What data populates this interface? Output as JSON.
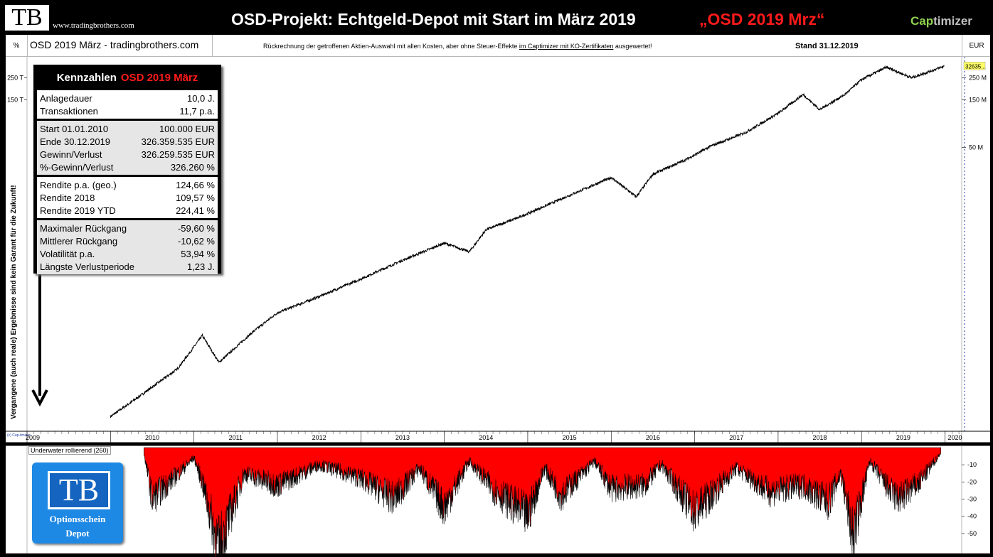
{
  "header": {
    "logo_text": "TB",
    "site": "www.tradingbrothers.com",
    "title": "OSD-Projekt:  Echtgeld-Depot mit Start im März 2019",
    "red_title": "„OSD 2019 Mrz“",
    "brand_cap": "Cap",
    "brand_rest": "timizer"
  },
  "info_row": {
    "pct_label": "%",
    "chart_name": "OSD 2019 März - tradingbrothers.com",
    "note_1": "Rückrechnung der getroffenen Aktien-Auswahl mit allen Kosten, aber ohne Steuer-Effekte ",
    "note_link": "im Captimizer mit KO-Zertifikaten",
    "note_2": " ausgewertet!",
    "stand": "Stand  31.12.2019",
    "eur_label": "EUR"
  },
  "kennzahlen": {
    "title": "Kennzahlen",
    "title_red": "OSD 2019 März",
    "groups": [
      {
        "shade": false,
        "rows": [
          {
            "label": "Anlagedauer",
            "value": "10,0 J."
          },
          {
            "label": "Transaktionen",
            "value": "11,7 p.a."
          }
        ]
      },
      {
        "shade": true,
        "rows": [
          {
            "label": "Start  01.01.2010",
            "value": "100.000 EUR"
          },
          {
            "label": "Ende 30.12.2019",
            "value": "326.359.535 EUR"
          },
          {
            "label": "Gewinn/Verlust",
            "value": "326.259.535 EUR"
          },
          {
            "label": "%-Gewinn/Verlust",
            "value": "326.260 %"
          }
        ]
      },
      {
        "shade": false,
        "rows": [
          {
            "label": "Rendite p.a. (geo.)",
            "value": "124,66 %"
          },
          {
            "label": "Rendite 2018",
            "value": "109,57 %"
          },
          {
            "label": "Rendite 2019 YTD",
            "value": "224,41 %"
          }
        ]
      },
      {
        "shade": true,
        "rows": [
          {
            "label": "Maximaler Rückgang",
            "value": "-59,60 %"
          },
          {
            "label": "Mittlerer Rückgang",
            "value": "-10,62 %"
          },
          {
            "label": "Volatilität p.a.",
            "value": "53,94 %"
          },
          {
            "label": "Längste Verlustperiode",
            "value": "1,23 J."
          }
        ]
      }
    ]
  },
  "disclaimer": "Vergangene (auch reale) Ergebnisse sind kein Garant für die Zukunft!",
  "underwater_label": "Underwater rollierend (260)",
  "small_logo": "(c) Cap-timizer",
  "bottom_logo": {
    "text": "TB",
    "line1": "Optionsschein",
    "line2": "Depot"
  },
  "colors": {
    "drawdown_fill": "#ff0000",
    "line": "#000000",
    "red_text": "#ff1a1a",
    "logo_blue": "#1e88e5",
    "brand_green": "#8fd14f",
    "price_tag": "#ffff66"
  },
  "chart_data": [
    {
      "type": "line",
      "scale": "log",
      "currency_label": "EUR",
      "left_axis_label": "%",
      "left_tick_labels": [
        "250 T",
        "150 T"
      ],
      "right_tick_labels": [
        "250 M",
        "150 M",
        "50 M"
      ],
      "right_ticks_value": [
        250000000,
        150000000,
        50000000
      ],
      "last_value_label": "32635...",
      "x_tick_labels": [
        "2009",
        "2010",
        "2011",
        "2012",
        "2013",
        "2014",
        "2015",
        "2016",
        "2017",
        "2018",
        "2019",
        "2020"
      ],
      "x_tick_years": [
        2009,
        2010,
        2011,
        2012,
        2013,
        2014,
        2015,
        2016,
        2017,
        2018,
        2019,
        2020
      ],
      "x": [
        2010.0,
        2010.3,
        2010.8,
        2011.0,
        2011.1,
        2011.3,
        2011.7,
        2012.0,
        2012.5,
        2013.0,
        2013.5,
        2014.0,
        2014.3,
        2014.5,
        2014.9,
        2015.3,
        2015.6,
        2016.0,
        2016.3,
        2016.5,
        2016.9,
        2017.2,
        2017.6,
        2018.0,
        2018.3,
        2018.5,
        2018.8,
        2019.0,
        2019.3,
        2019.6,
        2019.99
      ],
      "y": [
        100000,
        150000,
        300000,
        500000,
        650000,
        350000,
        700000,
        1100000,
        1600000,
        2400000,
        3700000,
        5500000,
        4500000,
        7500000,
        10000000,
        14000000,
        18000000,
        25000000,
        16000000,
        27000000,
        38000000,
        52000000,
        70000000,
        110000000,
        170000000,
        120000000,
        170000000,
        240000000,
        320000000,
        250000000,
        326359535
      ]
    },
    {
      "type": "area",
      "title": "Underwater rollierend (260)",
      "y_tick_labels": [
        "-10",
        "-20",
        "-30",
        "-40",
        "-50"
      ],
      "y_ticks": [
        -10,
        -20,
        -30,
        -40,
        -50
      ],
      "ylim": [
        -60,
        0
      ],
      "x": [
        2010.4,
        2010.5,
        2011.0,
        2011.1,
        2011.3,
        2011.6,
        2012.0,
        2012.5,
        2013.0,
        2013.4,
        2013.7,
        2014.0,
        2014.3,
        2014.6,
        2015.0,
        2015.2,
        2015.4,
        2015.8,
        2016.0,
        2016.4,
        2016.6,
        2017.0,
        2017.5,
        2017.9,
        2018.3,
        2018.6,
        2018.75,
        2018.9,
        2019.1,
        2019.35,
        2019.45,
        2019.7,
        2019.95
      ],
      "y": [
        -3,
        -30,
        -6,
        -20,
        -59.6,
        -15,
        -22,
        -10,
        -18,
        -30,
        -12,
        -35,
        -8,
        -25,
        -40,
        -12,
        -28,
        -8,
        -24,
        -22,
        -10,
        -38,
        -12,
        -26,
        -22,
        -32,
        -15,
        -52,
        -8,
        -26,
        -30,
        -20,
        -3
      ]
    }
  ]
}
